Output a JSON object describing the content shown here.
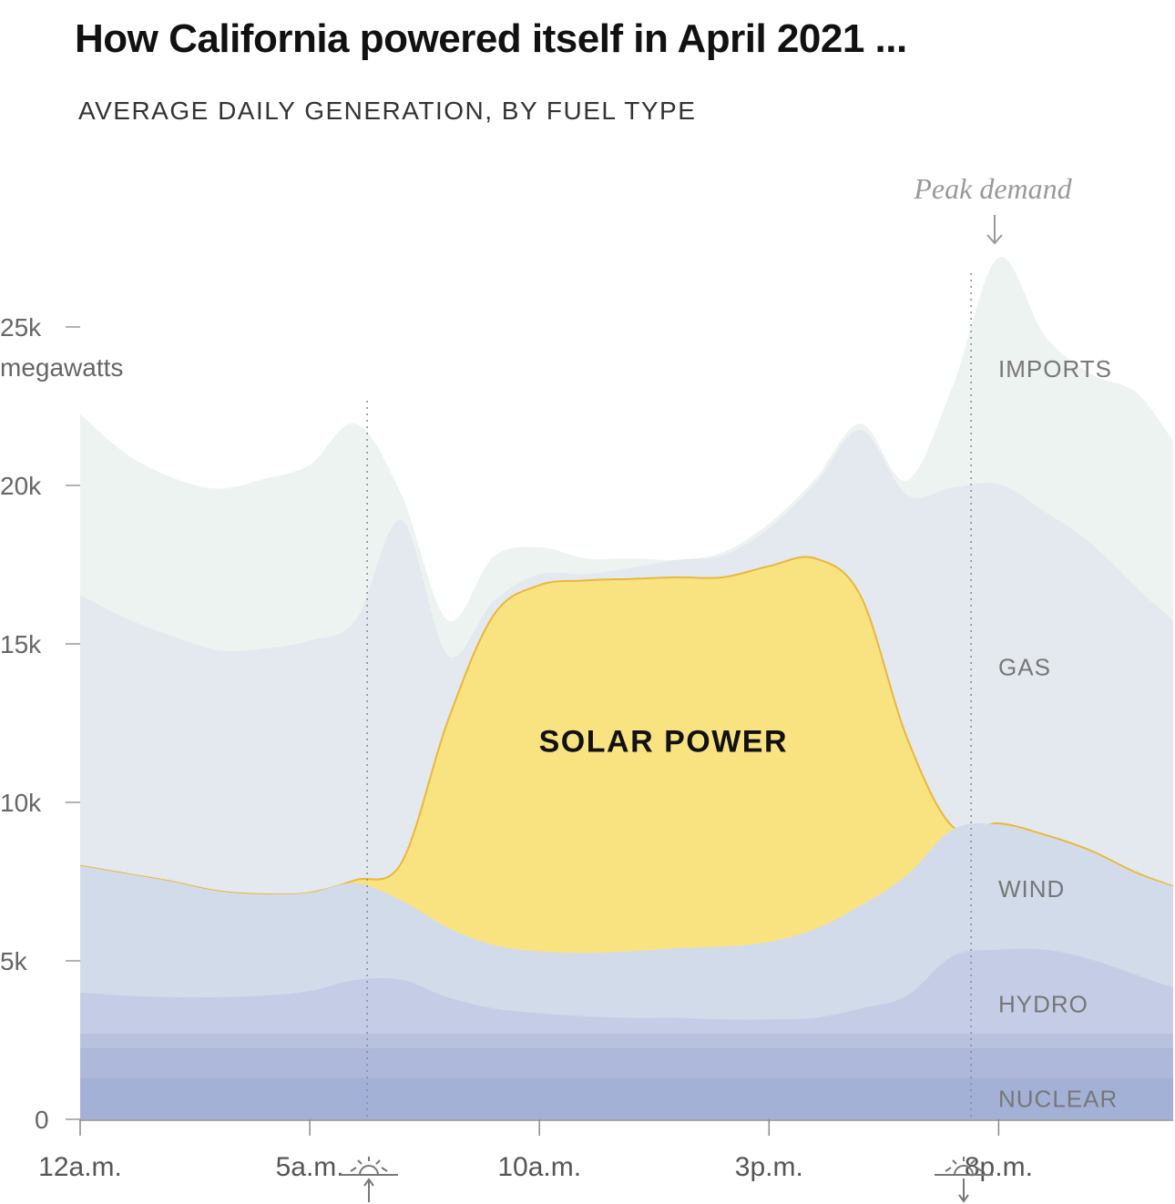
{
  "header": {
    "title": "How California powered itself in April 2021 ...",
    "subtitle": "AVERAGE DAILY GENERATION, BY FUEL TYPE"
  },
  "chart_data": {
    "type": "area",
    "stacked": true,
    "title": "How California powered itself in April 2021 ...",
    "subtitle": "AVERAGE DAILY GENERATION, BY FUEL TYPE",
    "ylabel": "megawatts",
    "ylim": [
      0,
      27000
    ],
    "yticks": [
      {
        "value": 0,
        "label": "0"
      },
      {
        "value": 5000,
        "label": "5k"
      },
      {
        "value": 10000,
        "label": "10k"
      },
      {
        "value": 15000,
        "label": "15k"
      },
      {
        "value": 20000,
        "label": "20k"
      },
      {
        "value": 25000,
        "label": "25k"
      }
    ],
    "y_unit_label": "megawatts",
    "xlim": [
      0,
      23.8
    ],
    "xticks": [
      {
        "value": 0,
        "label": "12a.m."
      },
      {
        "value": 5,
        "label": "5a.m."
      },
      {
        "value": 10,
        "label": "10a.m."
      },
      {
        "value": 15,
        "label": "3p.m."
      },
      {
        "value": 20,
        "label": "8p.m."
      }
    ],
    "x": [
      0,
      1,
      2,
      3,
      4,
      5,
      6,
      7,
      8,
      9,
      10,
      11,
      12,
      13,
      14,
      15,
      16,
      17,
      18,
      19,
      20,
      21,
      22,
      23,
      23.8
    ],
    "series": [
      {
        "name": "NUCLEAR",
        "color": "#a4b1d7",
        "values": [
          1300,
          1300,
          1300,
          1300,
          1300,
          1300,
          1300,
          1300,
          1300,
          1300,
          1300,
          1300,
          1300,
          1300,
          1300,
          1300,
          1300,
          1300,
          1300,
          1300,
          1300,
          1300,
          1300,
          1300,
          1300
        ]
      },
      {
        "name": "",
        "color": "#adb8da",
        "values": [
          950,
          950,
          950,
          950,
          950,
          950,
          950,
          950,
          950,
          950,
          950,
          950,
          950,
          950,
          950,
          950,
          950,
          950,
          950,
          950,
          950,
          950,
          950,
          950,
          950
        ]
      },
      {
        "name": "",
        "color": "#b8c2de",
        "values": [
          450,
          450,
          450,
          450,
          450,
          450,
          450,
          450,
          450,
          450,
          450,
          450,
          450,
          450,
          450,
          450,
          450,
          450,
          450,
          450,
          450,
          450,
          450,
          450,
          450
        ]
      },
      {
        "name": "HYDRO",
        "color": "#c5cde6",
        "values": [
          1300,
          1200,
          1150,
          1150,
          1200,
          1350,
          1700,
          1700,
          1150,
          800,
          650,
          550,
          500,
          500,
          450,
          450,
          500,
          800,
          1200,
          2450,
          2650,
          2650,
          2350,
          1850,
          1450
        ]
      },
      {
        "name": "WIND",
        "color": "#d2dbe9",
        "values": [
          4000,
          3850,
          3650,
          3350,
          3200,
          3100,
          3050,
          2500,
          2200,
          2000,
          1950,
          2000,
          2100,
          2200,
          2300,
          2450,
          2800,
          3250,
          3800,
          4000,
          3950,
          3600,
          3400,
          3200,
          3200
        ]
      },
      {
        "name": "SOLAR POWER",
        "color": "#f9e381",
        "values": [
          0,
          0,
          0,
          0,
          0,
          0,
          100,
          1200,
          6500,
          10400,
          11550,
          11750,
          11750,
          11700,
          11650,
          11850,
          11700,
          9750,
          4350,
          80,
          40,
          30,
          30,
          30,
          0
        ]
      },
      {
        "name": "GAS",
        "color": "#e3e9ef",
        "values": [
          8550,
          8050,
          7750,
          7600,
          7750,
          7950,
          8200,
          10800,
          2100,
          450,
          350,
          200,
          350,
          550,
          700,
          1200,
          2350,
          5250,
          7650,
          10700,
          10700,
          10200,
          9700,
          9000,
          8400
        ]
      },
      {
        "name": "IMPORTS",
        "color": "#edf3f0",
        "values": [
          5700,
          5200,
          5000,
          5100,
          5350,
          5550,
          6200,
          800,
          1100,
          1400,
          850,
          500,
          300,
          0,
          100,
          150,
          150,
          200,
          450,
          3200,
          7150,
          5550,
          5350,
          6150,
          5650
        ]
      }
    ],
    "vertical_lines": [
      {
        "x": 6.25,
        "label": "sunrise"
      },
      {
        "x": 19.4,
        "label": "sunset"
      }
    ],
    "annotations": [
      {
        "x": 19.4,
        "text": "Peak demand"
      }
    ],
    "legend": "inline-right"
  }
}
